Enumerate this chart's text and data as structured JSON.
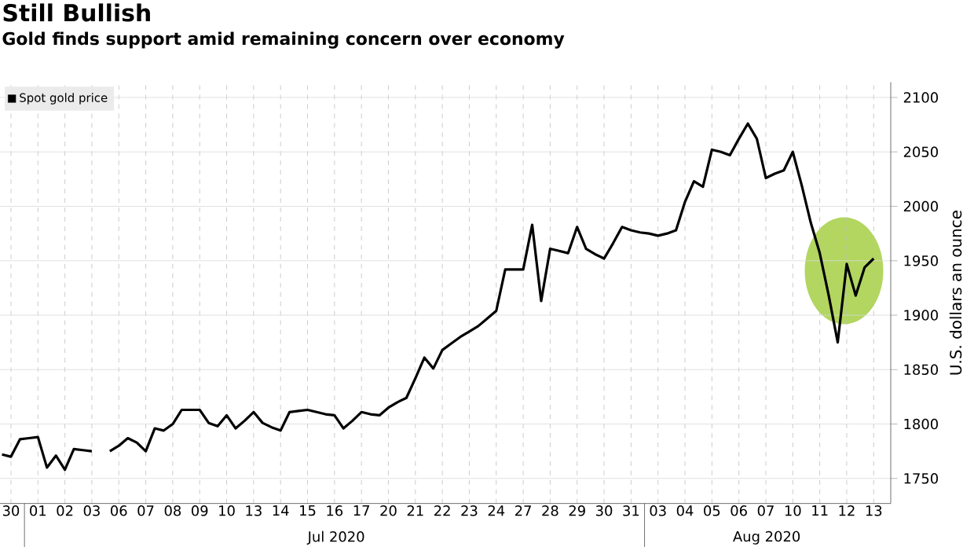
{
  "chart_data": {
    "type": "line",
    "title": "Still Bullish",
    "subtitle": "Gold finds support amid remaining concern over economy",
    "ylabel": "U.S. dollars an ounce",
    "categories": [
      null,
      "30",
      null,
      null,
      "01",
      null,
      null,
      "02",
      null,
      null,
      "03",
      null,
      null,
      "06",
      null,
      null,
      "07",
      null,
      null,
      "08",
      null,
      null,
      "09",
      null,
      null,
      "10",
      null,
      null,
      "13",
      null,
      null,
      "14",
      null,
      null,
      "15",
      null,
      null,
      "16",
      null,
      null,
      "17",
      null,
      null,
      "20",
      null,
      null,
      "21",
      null,
      null,
      "22",
      null,
      null,
      "23",
      null,
      null,
      "24",
      null,
      null,
      "27",
      null,
      null,
      "28",
      null,
      null,
      "29",
      null,
      null,
      "30",
      null,
      null,
      "31",
      null,
      null,
      "03",
      null,
      null,
      "04",
      null,
      null,
      "05",
      null,
      null,
      "06",
      null,
      null,
      "07",
      null,
      null,
      "10",
      null,
      null,
      "11",
      null,
      null,
      "12",
      null,
      null,
      "13",
      null
    ],
    "annotations": [
      "Jul 2020",
      "Aug 2020"
    ],
    "series": [
      {
        "name": "Spot gold price",
        "color": "#000000",
        "values": [
          1772,
          1770,
          1786,
          1787,
          1788,
          1760,
          1771,
          1758,
          1777,
          1776,
          1775,
          null,
          1775,
          1780,
          1787,
          1783,
          1775,
          1796,
          1794,
          1800,
          1813,
          1813,
          1813,
          1801,
          1798,
          1808,
          1796,
          1803,
          1811,
          1801,
          1797,
          1794,
          1811,
          1812,
          1813,
          1811,
          1809,
          1808,
          1796,
          1803,
          1811,
          1809,
          1808,
          1815,
          1820,
          1824,
          1842,
          1861,
          1851,
          1868,
          1874,
          1880,
          1885,
          1890,
          1897,
          1904,
          1942,
          1942,
          1942,
          1983,
          1913,
          1961,
          1959,
          1957,
          1981,
          1961,
          1956,
          1952,
          1966,
          1981,
          1978,
          1976,
          1975,
          1973,
          1975,
          1978,
          2004,
          2023,
          2018,
          2052,
          2050,
          2047,
          2062,
          2076,
          2062,
          2026,
          2030,
          2033,
          2050,
          2019,
          1985,
          1957,
          1918,
          1875,
          1947,
          1918,
          1944,
          1952,
          null
        ]
      }
    ],
    "ylim": [
      1727,
      2114
    ],
    "yticks": [
      1750,
      1800,
      1850,
      1900,
      1950,
      2000,
      2050,
      2100
    ],
    "grid": true,
    "legend": "top left",
    "marker": "none",
    "line_style": "solid"
  }
}
